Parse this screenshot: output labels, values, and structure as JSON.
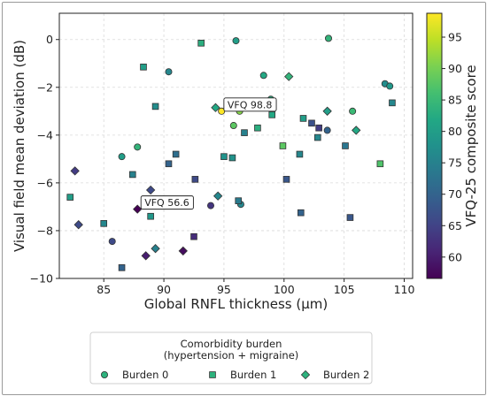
{
  "chart_data": {
    "type": "scatter",
    "xlabel": "Global RNFL thickness (μm)",
    "ylabel": "Visual field mean deviation (dB)",
    "xlim": [
      81.3,
      110.7
    ],
    "ylim": [
      -10,
      1.1
    ],
    "xticks": [
      85,
      90,
      95,
      100,
      105,
      110
    ],
    "yticks": [
      0,
      -2,
      -4,
      -6,
      -8,
      -10
    ],
    "grid": true,
    "colorbar": {
      "label": "VFQ-25 composite score",
      "range": [
        56.6,
        98.8
      ],
      "ticks": [
        60,
        65,
        70,
        75,
        80,
        85,
        90,
        95
      ],
      "colormap": "viridis"
    },
    "legend": {
      "title_line1": "Comorbidity burden",
      "title_line2": "(hypertension + migraine)",
      "placement": "bottom-center",
      "entries": [
        "Burden 0",
        "Burden 1",
        "Burden 2"
      ],
      "marker_color": "#2db27d"
    },
    "annotations": [
      {
        "text": "VFQ 98.8",
        "x": 94.7,
        "y": -3.0
      },
      {
        "text": "VFQ 56.6",
        "x": 87.8,
        "y": -7.1
      }
    ],
    "series": [
      {
        "marker": "circle",
        "points": [
          {
            "x": 86.5,
            "y": -4.9,
            "vfq": 80
          },
          {
            "x": 87.8,
            "y": -4.5,
            "vfq": 84
          },
          {
            "x": 90.4,
            "y": -1.35,
            "vfq": 76
          },
          {
            "x": 94.8,
            "y": -3.0,
            "vfq": 98.8
          },
          {
            "x": 95.8,
            "y": -3.6,
            "vfq": 88
          },
          {
            "x": 96.0,
            "y": -0.05,
            "vfq": 80
          },
          {
            "x": 96.3,
            "y": -3.0,
            "vfq": 91
          },
          {
            "x": 96.4,
            "y": -6.9,
            "vfq": 76
          },
          {
            "x": 98.3,
            "y": -1.5,
            "vfq": 82
          },
          {
            "x": 98.9,
            "y": -2.5,
            "vfq": 83
          },
          {
            "x": 103.6,
            "y": -3.8,
            "vfq": 70
          },
          {
            "x": 103.7,
            "y": 0.05,
            "vfq": 84
          },
          {
            "x": 105.7,
            "y": -3.0,
            "vfq": 85
          },
          {
            "x": 108.4,
            "y": -1.85,
            "vfq": 77
          },
          {
            "x": 108.8,
            "y": -1.95,
            "vfq": 79
          },
          {
            "x": 85.7,
            "y": -8.45,
            "vfq": 66
          },
          {
            "x": 93.9,
            "y": -6.95,
            "vfq": 63
          }
        ]
      },
      {
        "marker": "square",
        "points": [
          {
            "x": 82.2,
            "y": -6.6,
            "vfq": 80
          },
          {
            "x": 85.0,
            "y": -7.7,
            "vfq": 76
          },
          {
            "x": 86.5,
            "y": -9.55,
            "vfq": 70
          },
          {
            "x": 87.4,
            "y": -5.65,
            "vfq": 75
          },
          {
            "x": 88.3,
            "y": -1.15,
            "vfq": 80
          },
          {
            "x": 88.9,
            "y": -7.4,
            "vfq": 79
          },
          {
            "x": 89.3,
            "y": -2.8,
            "vfq": 77
          },
          {
            "x": 90.4,
            "y": -5.2,
            "vfq": 70
          },
          {
            "x": 91.0,
            "y": -4.8,
            "vfq": 72
          },
          {
            "x": 92.5,
            "y": -8.25,
            "vfq": 62
          },
          {
            "x": 92.6,
            "y": -5.85,
            "vfq": 66
          },
          {
            "x": 93.1,
            "y": -0.15,
            "vfq": 83
          },
          {
            "x": 95.0,
            "y": -4.9,
            "vfq": 78
          },
          {
            "x": 95.7,
            "y": -4.95,
            "vfq": 78
          },
          {
            "x": 96.2,
            "y": -6.75,
            "vfq": 74
          },
          {
            "x": 96.7,
            "y": -3.9,
            "vfq": 75
          },
          {
            "x": 97.8,
            "y": -3.7,
            "vfq": 83
          },
          {
            "x": 99.0,
            "y": -3.15,
            "vfq": 82
          },
          {
            "x": 99.9,
            "y": -4.45,
            "vfq": 88
          },
          {
            "x": 100.2,
            "y": -5.85,
            "vfq": 68
          },
          {
            "x": 101.3,
            "y": -4.8,
            "vfq": 76
          },
          {
            "x": 101.4,
            "y": -7.25,
            "vfq": 70
          },
          {
            "x": 101.6,
            "y": -3.3,
            "vfq": 80
          },
          {
            "x": 102.3,
            "y": -3.5,
            "vfq": 67
          },
          {
            "x": 102.9,
            "y": -3.7,
            "vfq": 64
          },
          {
            "x": 102.8,
            "y": -4.1,
            "vfq": 76
          },
          {
            "x": 105.1,
            "y": -4.45,
            "vfq": 73
          },
          {
            "x": 105.5,
            "y": -7.45,
            "vfq": 68
          },
          {
            "x": 108.0,
            "y": -5.2,
            "vfq": 87
          },
          {
            "x": 109.0,
            "y": -2.65,
            "vfq": 76
          }
        ]
      },
      {
        "marker": "diamond",
        "points": [
          {
            "x": 82.6,
            "y": -5.5,
            "vfq": 64
          },
          {
            "x": 82.9,
            "y": -7.75,
            "vfq": 66
          },
          {
            "x": 87.8,
            "y": -7.1,
            "vfq": 56.6
          },
          {
            "x": 88.5,
            "y": -9.05,
            "vfq": 60
          },
          {
            "x": 88.9,
            "y": -6.3,
            "vfq": 66
          },
          {
            "x": 89.3,
            "y": -8.75,
            "vfq": 75
          },
          {
            "x": 91.6,
            "y": -8.85,
            "vfq": 58
          },
          {
            "x": 94.3,
            "y": -2.85,
            "vfq": 82
          },
          {
            "x": 94.5,
            "y": -6.55,
            "vfq": 76
          },
          {
            "x": 100.4,
            "y": -1.55,
            "vfq": 84
          },
          {
            "x": 103.6,
            "y": -3.0,
            "vfq": 80
          },
          {
            "x": 106.0,
            "y": -3.8,
            "vfq": 82
          }
        ]
      }
    ]
  }
}
